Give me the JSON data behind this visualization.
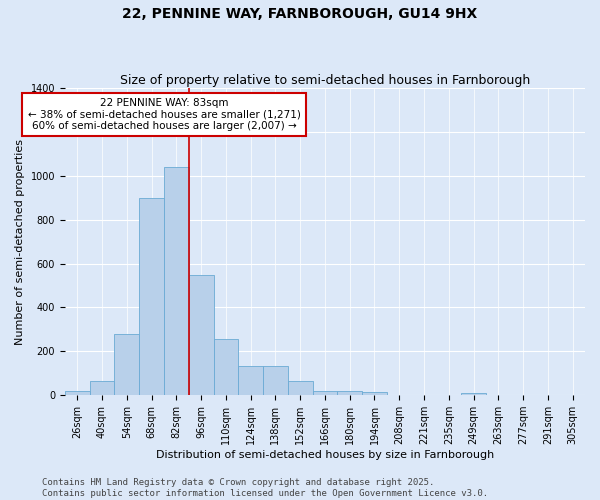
{
  "title": "22, PENNINE WAY, FARNBOROUGH, GU14 9HX",
  "subtitle": "Size of property relative to semi-detached houses in Farnborough",
  "xlabel": "Distribution of semi-detached houses by size in Farnborough",
  "ylabel": "Number of semi-detached properties",
  "footer_line1": "Contains HM Land Registry data © Crown copyright and database right 2025.",
  "footer_line2": "Contains public sector information licensed under the Open Government Licence v3.0.",
  "bin_labels": [
    "26sqm",
    "40sqm",
    "54sqm",
    "68sqm",
    "82sqm",
    "96sqm",
    "110sqm",
    "124sqm",
    "138sqm",
    "152sqm",
    "166sqm",
    "180sqm",
    "194sqm",
    "208sqm",
    "221sqm",
    "235sqm",
    "249sqm",
    "263sqm",
    "277sqm",
    "291sqm",
    "305sqm"
  ],
  "bar_values": [
    20,
    65,
    280,
    900,
    1040,
    550,
    255,
    135,
    135,
    65,
    20,
    20,
    15,
    0,
    0,
    0,
    10,
    0,
    0,
    0,
    0
  ],
  "bar_color": "#b8d0ea",
  "bar_edge_color": "#6aaad4",
  "red_line_x": 4.5,
  "annotation_text": "22 PENNINE WAY: 83sqm\n← 38% of semi-detached houses are smaller (1,271)\n60% of semi-detached houses are larger (2,007) →",
  "annotation_box_color": "#ffffff",
  "annotation_box_edge_color": "#cc0000",
  "ylim": [
    0,
    1400
  ],
  "yticks": [
    0,
    200,
    400,
    600,
    800,
    1000,
    1200,
    1400
  ],
  "background_color": "#dce8f8",
  "axes_background_color": "#dce8f8",
  "grid_color": "#ffffff",
  "red_line_color": "#cc0000",
  "title_fontsize": 10,
  "subtitle_fontsize": 9,
  "axis_label_fontsize": 8,
  "tick_label_fontsize": 7,
  "annotation_fontsize": 7.5,
  "footer_fontsize": 6.5
}
